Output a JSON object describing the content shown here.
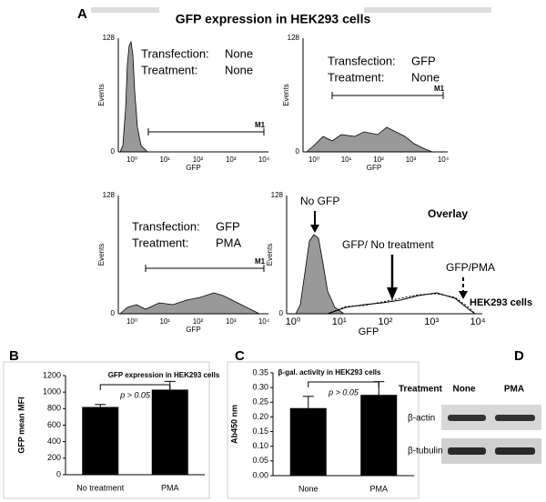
{
  "panel_a": {
    "letter": "A",
    "title": "GFP expression in HEK293 cells",
    "y_max": "128",
    "y_min": "0",
    "y_label": "Events",
    "x_label": "GFP",
    "x_ticks": [
      "10⁰",
      "10¹",
      "10²",
      "10³",
      "10⁴"
    ],
    "gate": "M1",
    "plots": [
      {
        "transfection_label": "Transfection:",
        "transfection": "None",
        "treatment_label": "Treatment:",
        "treatment": "None"
      },
      {
        "transfection_label": "Transfection:",
        "transfection": "GFP",
        "treatment_label": "Treatment:",
        "treatment": "None"
      },
      {
        "transfection_label": "Transfection:",
        "transfection": "GFP",
        "treatment_label": "Treatment:",
        "treatment": "PMA"
      }
    ],
    "overlay": {
      "title": "Overlay",
      "no_gfp": "No GFP",
      "no_treatment": "GFP/ No treatment",
      "pma": "GFP/PMA",
      "cells": "HEK293 cells"
    }
  },
  "chart_data": [
    {
      "type": "bar",
      "letter": "B",
      "title": "GFP expression in HEK293 cells",
      "y_label": "GFP mean MFI",
      "categories": [
        "No treatment",
        "PMA"
      ],
      "values": [
        820,
        1030
      ],
      "errors": [
        30,
        100
      ],
      "color": "#000000",
      "ylim": [
        0,
        1200
      ],
      "yticks": [
        0,
        200,
        400,
        600,
        800,
        1000,
        1200
      ],
      "annotation": "p > 0.05"
    },
    {
      "type": "bar",
      "letter": "C",
      "title": "β-gal. activity in HEK293 cells",
      "y_label": "Ab450 nm",
      "categories": [
        "None",
        "PMA"
      ],
      "values": [
        0.23,
        0.275
      ],
      "errors": [
        0.04,
        0.045
      ],
      "color": "#000000",
      "ylim": [
        0,
        0.35
      ],
      "yticks": [
        {
          "value": 0,
          "label": "0.00"
        },
        {
          "value": 0.05,
          "label": "0.05"
        },
        {
          "value": 0.1,
          "label": "0.10"
        },
        {
          "value": 0.15,
          "label": "0.15"
        },
        {
          "value": 0.2,
          "label": "0.20"
        },
        {
          "value": 0.25,
          "label": "0.25"
        },
        {
          "value": 0.3,
          "label": "0.30"
        },
        {
          "value": 0.35,
          "label": "0.35"
        }
      ],
      "annotation": "p > 0.05"
    }
  ],
  "panel_d": {
    "letter": "D",
    "header": [
      "Treatment",
      "None",
      "PMA"
    ],
    "rows": [
      "β-actin",
      "β-tubulin"
    ]
  }
}
